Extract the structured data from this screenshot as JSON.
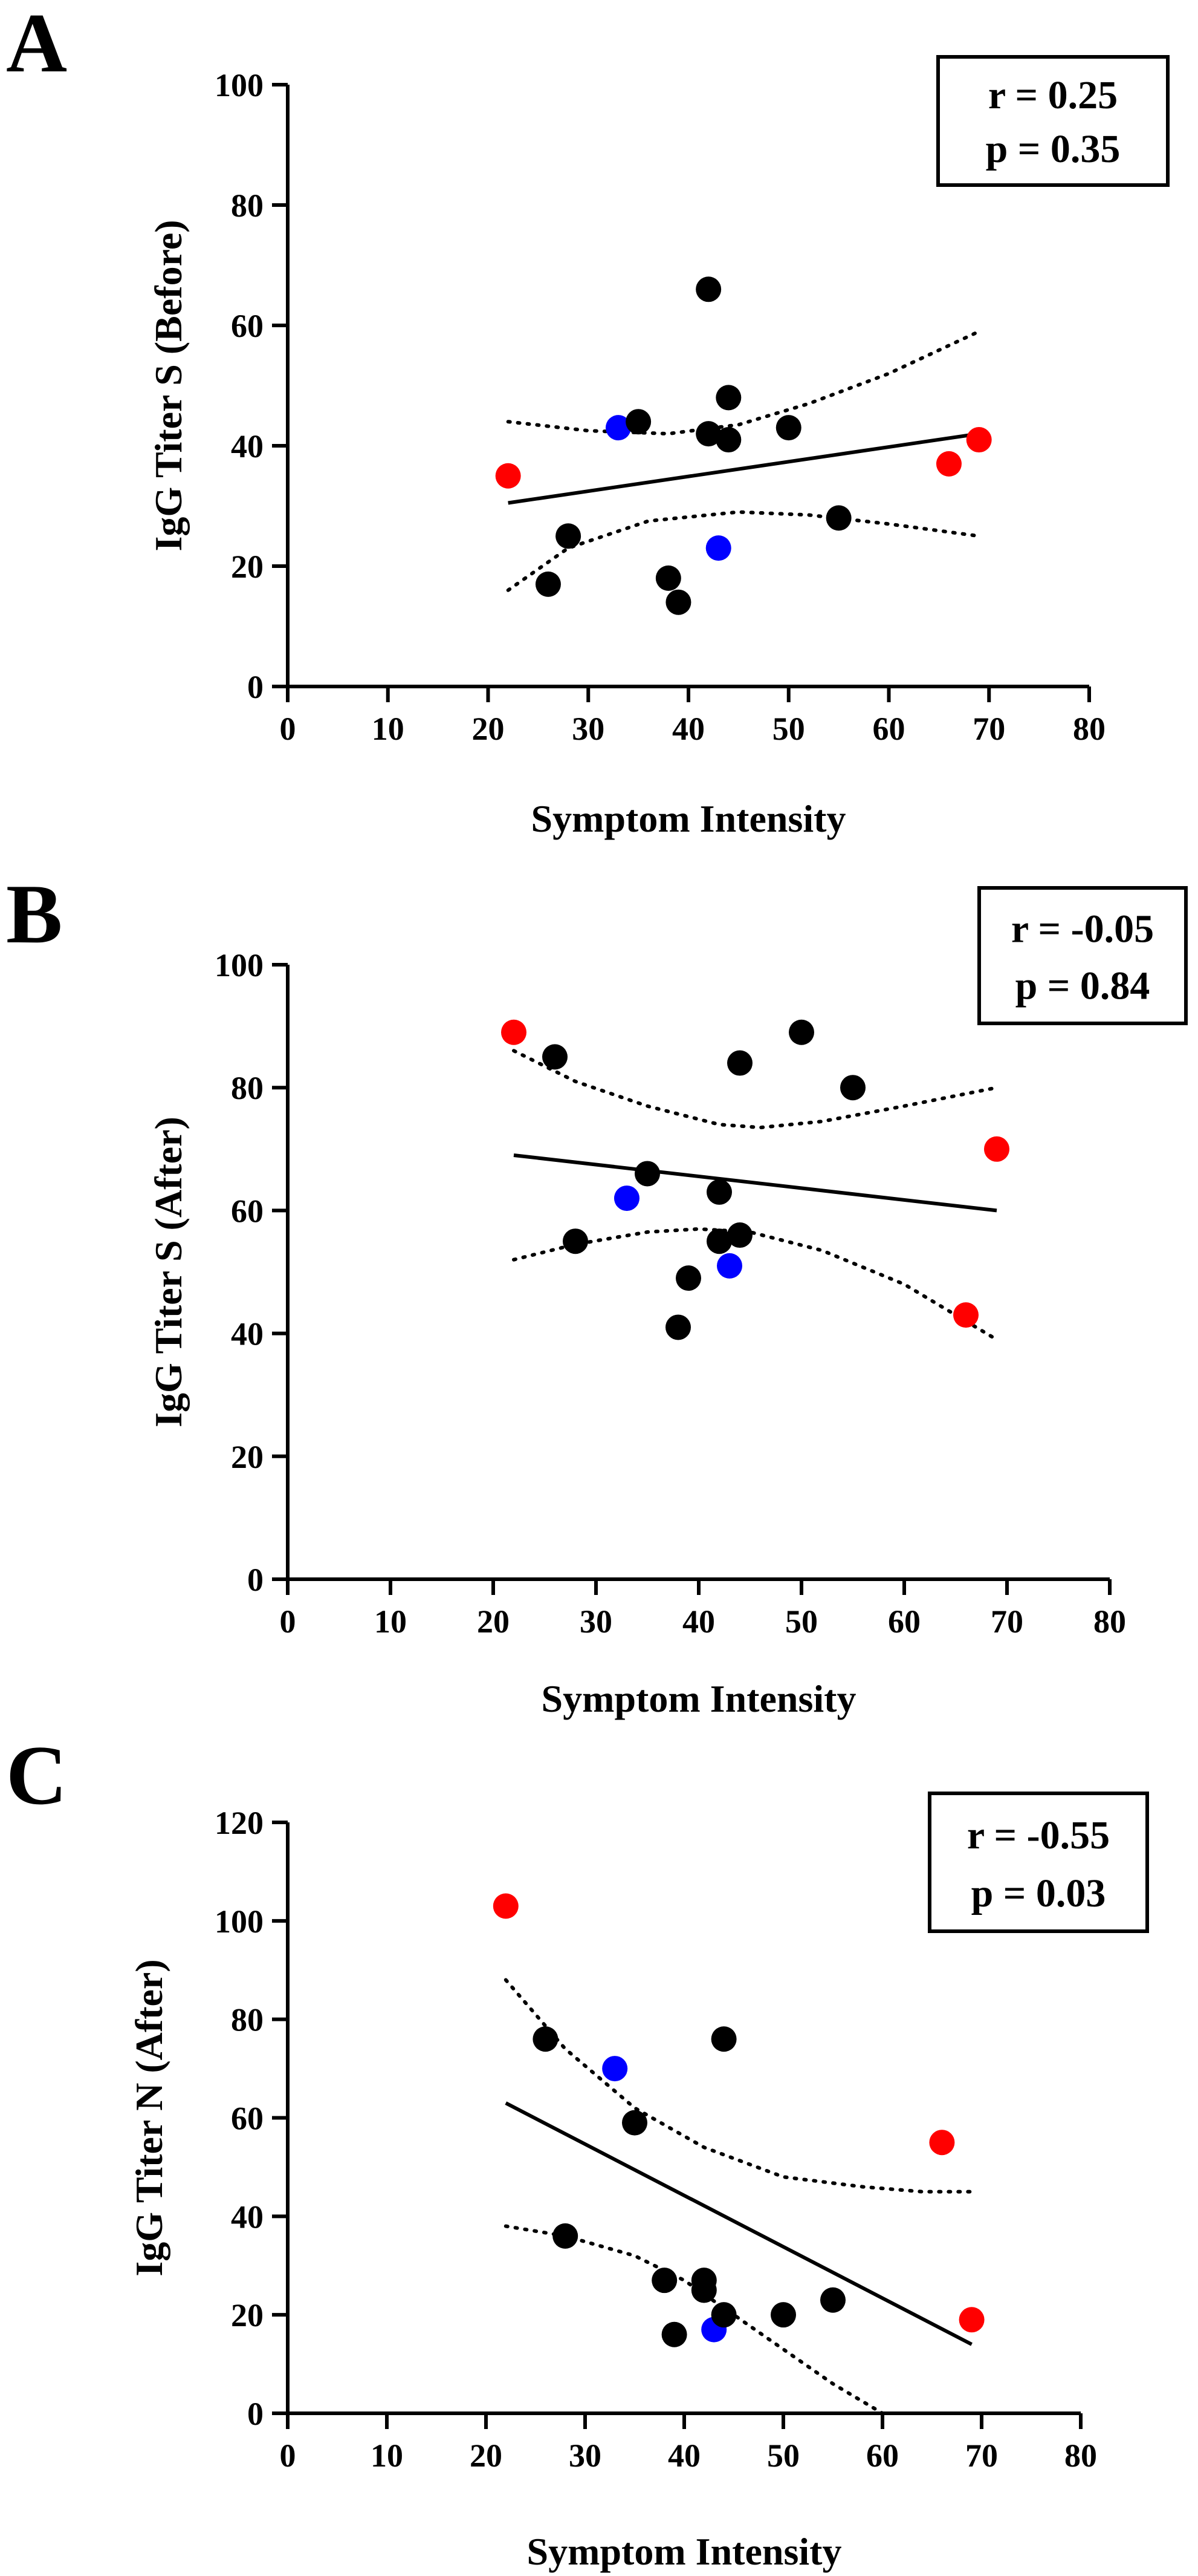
{
  "colors": {
    "black_group": "#000000",
    "red_group": "#ff0000",
    "blue_group": "#0000ff"
  },
  "chart_data": [
    {
      "panel": "A",
      "type": "scatter",
      "xlabel": "Symptom Intensity",
      "ylabel": "IgG Titer S (Before)",
      "xlim": [
        0,
        80
      ],
      "ylim": [
        0,
        100
      ],
      "xticks": [
        0,
        10,
        20,
        30,
        40,
        50,
        60,
        70,
        80
      ],
      "yticks": [
        0,
        20,
        40,
        60,
        80,
        100
      ],
      "stats": {
        "r": "r = 0.25",
        "p": "p = 0.35"
      },
      "fit_line": {
        "x": [
          22,
          69
        ],
        "y": [
          30.5,
          42
        ]
      },
      "ci_upper": {
        "x": [
          22,
          30,
          38,
          45,
          52,
          60,
          69
        ],
        "y": [
          44,
          42.5,
          42,
          43.5,
          47,
          52,
          59
        ]
      },
      "ci_lower": {
        "x": [
          22,
          28,
          36,
          45,
          52,
          60,
          69
        ],
        "y": [
          16,
          23,
          27.5,
          29,
          28.5,
          27,
          25
        ]
      },
      "points": [
        {
          "x": 22,
          "y": 35,
          "color": "red"
        },
        {
          "x": 26,
          "y": 17,
          "color": "black"
        },
        {
          "x": 28,
          "y": 25,
          "color": "black"
        },
        {
          "x": 33,
          "y": 43,
          "color": "blue"
        },
        {
          "x": 35,
          "y": 44,
          "color": "black"
        },
        {
          "x": 38,
          "y": 18,
          "color": "black"
        },
        {
          "x": 39,
          "y": 14,
          "color": "black"
        },
        {
          "x": 42,
          "y": 66,
          "color": "black"
        },
        {
          "x": 42,
          "y": 42,
          "color": "black"
        },
        {
          "x": 43,
          "y": 23,
          "color": "blue"
        },
        {
          "x": 44,
          "y": 48,
          "color": "black"
        },
        {
          "x": 44,
          "y": 41,
          "color": "black"
        },
        {
          "x": 50,
          "y": 43,
          "color": "black"
        },
        {
          "x": 55,
          "y": 28,
          "color": "black"
        },
        {
          "x": 66,
          "y": 37,
          "color": "red"
        },
        {
          "x": 69,
          "y": 41,
          "color": "red"
        }
      ]
    },
    {
      "panel": "B",
      "type": "scatter",
      "xlabel": "Symptom Intensity",
      "ylabel": "IgG Titer S (After)",
      "xlim": [
        0,
        80
      ],
      "ylim": [
        0,
        100
      ],
      "xticks": [
        0,
        10,
        20,
        30,
        40,
        50,
        60,
        70,
        80
      ],
      "yticks": [
        0,
        20,
        40,
        60,
        80,
        100
      ],
      "stats": {
        "r": "r = -0.05",
        "p": "p = 0.84"
      },
      "fit_line": {
        "x": [
          22,
          69
        ],
        "y": [
          69,
          60
        ]
      },
      "ci_upper": {
        "x": [
          22,
          28,
          35,
          42,
          46,
          52,
          60,
          69
        ],
        "y": [
          86,
          81,
          77,
          74,
          73.5,
          74.5,
          77,
          80
        ]
      },
      "ci_lower": {
        "x": [
          22,
          28,
          35,
          40,
          45,
          52,
          60,
          69
        ],
        "y": [
          52,
          54.5,
          56.5,
          57,
          56.5,
          53.5,
          48,
          39
        ]
      },
      "points": [
        {
          "x": 22,
          "y": 89,
          "color": "red"
        },
        {
          "x": 26,
          "y": 85,
          "color": "black"
        },
        {
          "x": 28,
          "y": 55,
          "color": "black"
        },
        {
          "x": 33,
          "y": 62,
          "color": "blue"
        },
        {
          "x": 35,
          "y": 66,
          "color": "black"
        },
        {
          "x": 38,
          "y": 41,
          "color": "black"
        },
        {
          "x": 39,
          "y": 49,
          "color": "black"
        },
        {
          "x": 42,
          "y": 63,
          "color": "black"
        },
        {
          "x": 42,
          "y": 55,
          "color": "black"
        },
        {
          "x": 43,
          "y": 51,
          "color": "blue"
        },
        {
          "x": 44,
          "y": 84,
          "color": "black"
        },
        {
          "x": 44,
          "y": 56,
          "color": "black"
        },
        {
          "x": 50,
          "y": 89,
          "color": "black"
        },
        {
          "x": 55,
          "y": 80,
          "color": "black"
        },
        {
          "x": 66,
          "y": 43,
          "color": "red"
        },
        {
          "x": 69,
          "y": 70,
          "color": "red"
        }
      ]
    },
    {
      "panel": "C",
      "type": "scatter",
      "xlabel": "Symptom Intensity",
      "ylabel": "IgG Titer N (After)",
      "xlim": [
        0,
        80
      ],
      "ylim": [
        0,
        120
      ],
      "xticks": [
        0,
        10,
        20,
        30,
        40,
        50,
        60,
        70,
        80
      ],
      "yticks": [
        0,
        20,
        40,
        60,
        80,
        100,
        120
      ],
      "stats": {
        "r": "r = -0.55",
        "p": "p = 0.03"
      },
      "fit_line": {
        "x": [
          22,
          69
        ],
        "y": [
          63,
          14
        ]
      },
      "ci_upper": {
        "x": [
          22,
          28,
          35,
          42,
          50,
          58,
          64,
          69
        ],
        "y": [
          88,
          74,
          62,
          54,
          48,
          46,
          45,
          45
        ]
      },
      "ci_lower": {
        "x": [
          22,
          28,
          35,
          40,
          45,
          50,
          55,
          60
        ],
        "y": [
          38,
          36,
          32,
          27,
          20,
          13,
          6,
          0
        ]
      },
      "points": [
        {
          "x": 22,
          "y": 103,
          "color": "red"
        },
        {
          "x": 26,
          "y": 76,
          "color": "black"
        },
        {
          "x": 28,
          "y": 36,
          "color": "black"
        },
        {
          "x": 33,
          "y": 70,
          "color": "blue"
        },
        {
          "x": 35,
          "y": 59,
          "color": "black"
        },
        {
          "x": 38,
          "y": 27,
          "color": "black"
        },
        {
          "x": 39,
          "y": 16,
          "color": "black"
        },
        {
          "x": 42,
          "y": 27,
          "color": "black"
        },
        {
          "x": 42,
          "y": 25,
          "color": "black"
        },
        {
          "x": 43,
          "y": 17,
          "color": "blue"
        },
        {
          "x": 44,
          "y": 76,
          "color": "black"
        },
        {
          "x": 44,
          "y": 20,
          "color": "black"
        },
        {
          "x": 50,
          "y": 20,
          "color": "black"
        },
        {
          "x": 55,
          "y": 23,
          "color": "black"
        },
        {
          "x": 66,
          "y": 55,
          "color": "red"
        },
        {
          "x": 69,
          "y": 19,
          "color": "red"
        }
      ]
    }
  ]
}
